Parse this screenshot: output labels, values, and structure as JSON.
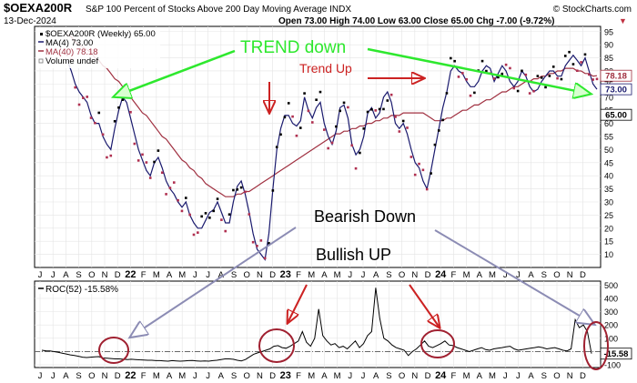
{
  "header": {
    "symbol": "$OEXA200R",
    "description": "S&P 100 Percent of Stocks Above 200 Day Moving Average INDX",
    "brand": "© StockCharts.com",
    "date": "13-Dec-2024",
    "ohlc": "Open 73.00  High 74.00  Low 63.00  Close 65.00  Chg -7.00 (-9.72%)",
    "down_marker": "▼"
  },
  "legend": {
    "series_main": "$OEXA200R (Weekly) 65.00",
    "ma4": "MA(4) 73.00",
    "ma40": "MA(40) 78.18",
    "volume": "Volume undef"
  },
  "annotations": {
    "trend_down": "TREND down",
    "trend_up": "Trend Up",
    "bearish_down": "Bearish Down",
    "bullish_up": "Bullish UP"
  },
  "colors": {
    "price": "#000000",
    "ma4": "#1a1a6e",
    "ma40": "#a03040",
    "green": "#2ee82e",
    "red": "#cc2222",
    "gray_arrow": "#8c8cb4"
  },
  "chart_data": [
    {
      "type": "line",
      "title": "$OEXA200R S&P 100 Percent of Stocks Above 200 Day Moving Average INDX",
      "y_ticks": [
        10,
        15,
        20,
        25,
        30,
        35,
        40,
        45,
        50,
        55,
        60,
        65,
        70,
        75,
        80,
        85,
        90,
        95
      ],
      "ylim": [
        5,
        97
      ],
      "x_ticks": [
        "J",
        "J",
        "A",
        "S",
        "O",
        "N",
        "D",
        "22",
        "F",
        "M",
        "A",
        "M",
        "J",
        "J",
        "A",
        "S",
        "O",
        "N",
        "D",
        "23",
        "F",
        "M",
        "A",
        "M",
        "J",
        "J",
        "A",
        "S",
        "O",
        "N",
        "D",
        "24",
        "F",
        "M",
        "A",
        "M",
        "J",
        "J",
        "A",
        "S",
        "O",
        "N",
        "D"
      ],
      "value_labels": [
        {
          "text": "78.18",
          "value": 78.18,
          "series": "MA(40)"
        },
        {
          "text": "73.00",
          "value": 73.0,
          "series": "MA(4)"
        },
        {
          "text": "65.00",
          "value": 65.0,
          "series": "close"
        }
      ],
      "series": [
        {
          "name": "MA(4)",
          "values": [
            84,
            80,
            75,
            72,
            70,
            68,
            63,
            60,
            60,
            55,
            52,
            50,
            58,
            65,
            70,
            68,
            62,
            56,
            50,
            46,
            42,
            40,
            45,
            47,
            43,
            38,
            35,
            33,
            30,
            28,
            30,
            25,
            22,
            20,
            20,
            23,
            26,
            27,
            30,
            26,
            22,
            22,
            30,
            36,
            38,
            33,
            26,
            18,
            12,
            10,
            8,
            18,
            35,
            50,
            58,
            63,
            63,
            60,
            59,
            61,
            70,
            65,
            62,
            66,
            68,
            60,
            55,
            52,
            57,
            66,
            67,
            62,
            52,
            48,
            50,
            55,
            64,
            66,
            62,
            64,
            70,
            72,
            68,
            60,
            58,
            60,
            56,
            50,
            45,
            43,
            38,
            35,
            42,
            50,
            58,
            66,
            72,
            80,
            82,
            80,
            79,
            76,
            74,
            74,
            76,
            80,
            82,
            81,
            76,
            79,
            82,
            80,
            76,
            74,
            76,
            80,
            78,
            74,
            72,
            73,
            76,
            78,
            80,
            80,
            78,
            78,
            82,
            84,
            86,
            84,
            82,
            85,
            80,
            75,
            73
          ]
        },
        {
          "name": "MA(40)",
          "values": [
            94,
            93,
            91,
            90,
            89,
            88,
            87,
            85,
            84,
            82,
            81,
            79,
            77,
            76,
            74,
            72,
            70,
            68,
            66,
            64,
            63,
            61,
            59,
            57,
            55,
            54,
            52,
            50,
            48,
            46,
            45,
            43,
            42,
            40,
            39,
            37,
            36,
            35,
            34,
            33,
            32,
            32,
            32,
            33,
            33,
            34,
            34,
            35,
            36,
            37,
            38,
            39,
            40,
            41,
            42,
            43,
            44,
            45,
            46,
            47,
            48,
            49,
            50,
            51,
            52,
            53,
            54,
            55,
            56,
            56,
            57,
            57,
            58,
            58,
            59,
            59,
            60,
            60,
            61,
            61,
            62,
            62,
            63,
            63,
            63,
            64,
            64,
            64,
            64,
            64,
            64,
            63,
            62,
            61,
            61,
            61,
            62,
            62,
            63,
            64,
            65,
            65,
            66,
            67,
            67,
            68,
            69,
            69,
            70,
            71,
            72,
            72,
            73,
            74,
            74,
            75,
            76,
            76,
            77,
            77,
            78,
            78,
            79,
            79,
            80,
            80,
            81,
            81,
            81,
            80,
            80,
            79,
            79,
            78,
            78.18
          ]
        }
      ]
    },
    {
      "type": "line",
      "title": "ROC(52) -15.58%",
      "y_ticks": [
        -100,
        0,
        100,
        200,
        300,
        400,
        500
      ],
      "ylim": [
        -120,
        530
      ],
      "value_labels": [
        {
          "text": "-15.58",
          "value": -15.58
        }
      ],
      "series": [
        {
          "name": "ROC(52)",
          "values": [
            10,
            6,
            5,
            0,
            -5,
            -12,
            -18,
            -25,
            -30,
            -35,
            -42,
            -45,
            -42,
            -40,
            -38,
            -48,
            -50,
            -52,
            -55,
            -55,
            -58,
            -60,
            -58,
            -60,
            -62,
            -63,
            -65,
            -65,
            -68,
            -68,
            -70,
            -72,
            -68,
            -70,
            -72,
            -70,
            -68,
            -67,
            -70,
            -72,
            -70,
            -72,
            -68,
            -65,
            -60,
            -55,
            -55,
            -58,
            -65,
            -70,
            -60,
            -40,
            -20,
            -10,
            0,
            10,
            20,
            40,
            45,
            30,
            25,
            40,
            60,
            80,
            150,
            70,
            40,
            100,
            320,
            120,
            80,
            50,
            60,
            30,
            40,
            20,
            50,
            80,
            30,
            60,
            120,
            150,
            480,
            250,
            100,
            80,
            50,
            30,
            20,
            10,
            -30,
            0,
            20,
            50,
            80,
            40,
            30,
            45,
            60,
            80,
            50,
            45,
            30,
            20,
            10,
            0,
            10,
            20,
            30,
            15,
            10,
            20,
            25,
            30,
            35,
            40,
            20,
            10,
            15,
            20,
            25,
            30,
            35,
            30,
            20,
            25,
            30,
            20,
            10,
            5,
            20,
            240,
            180,
            200,
            150,
            -15.58
          ]
        }
      ]
    }
  ]
}
